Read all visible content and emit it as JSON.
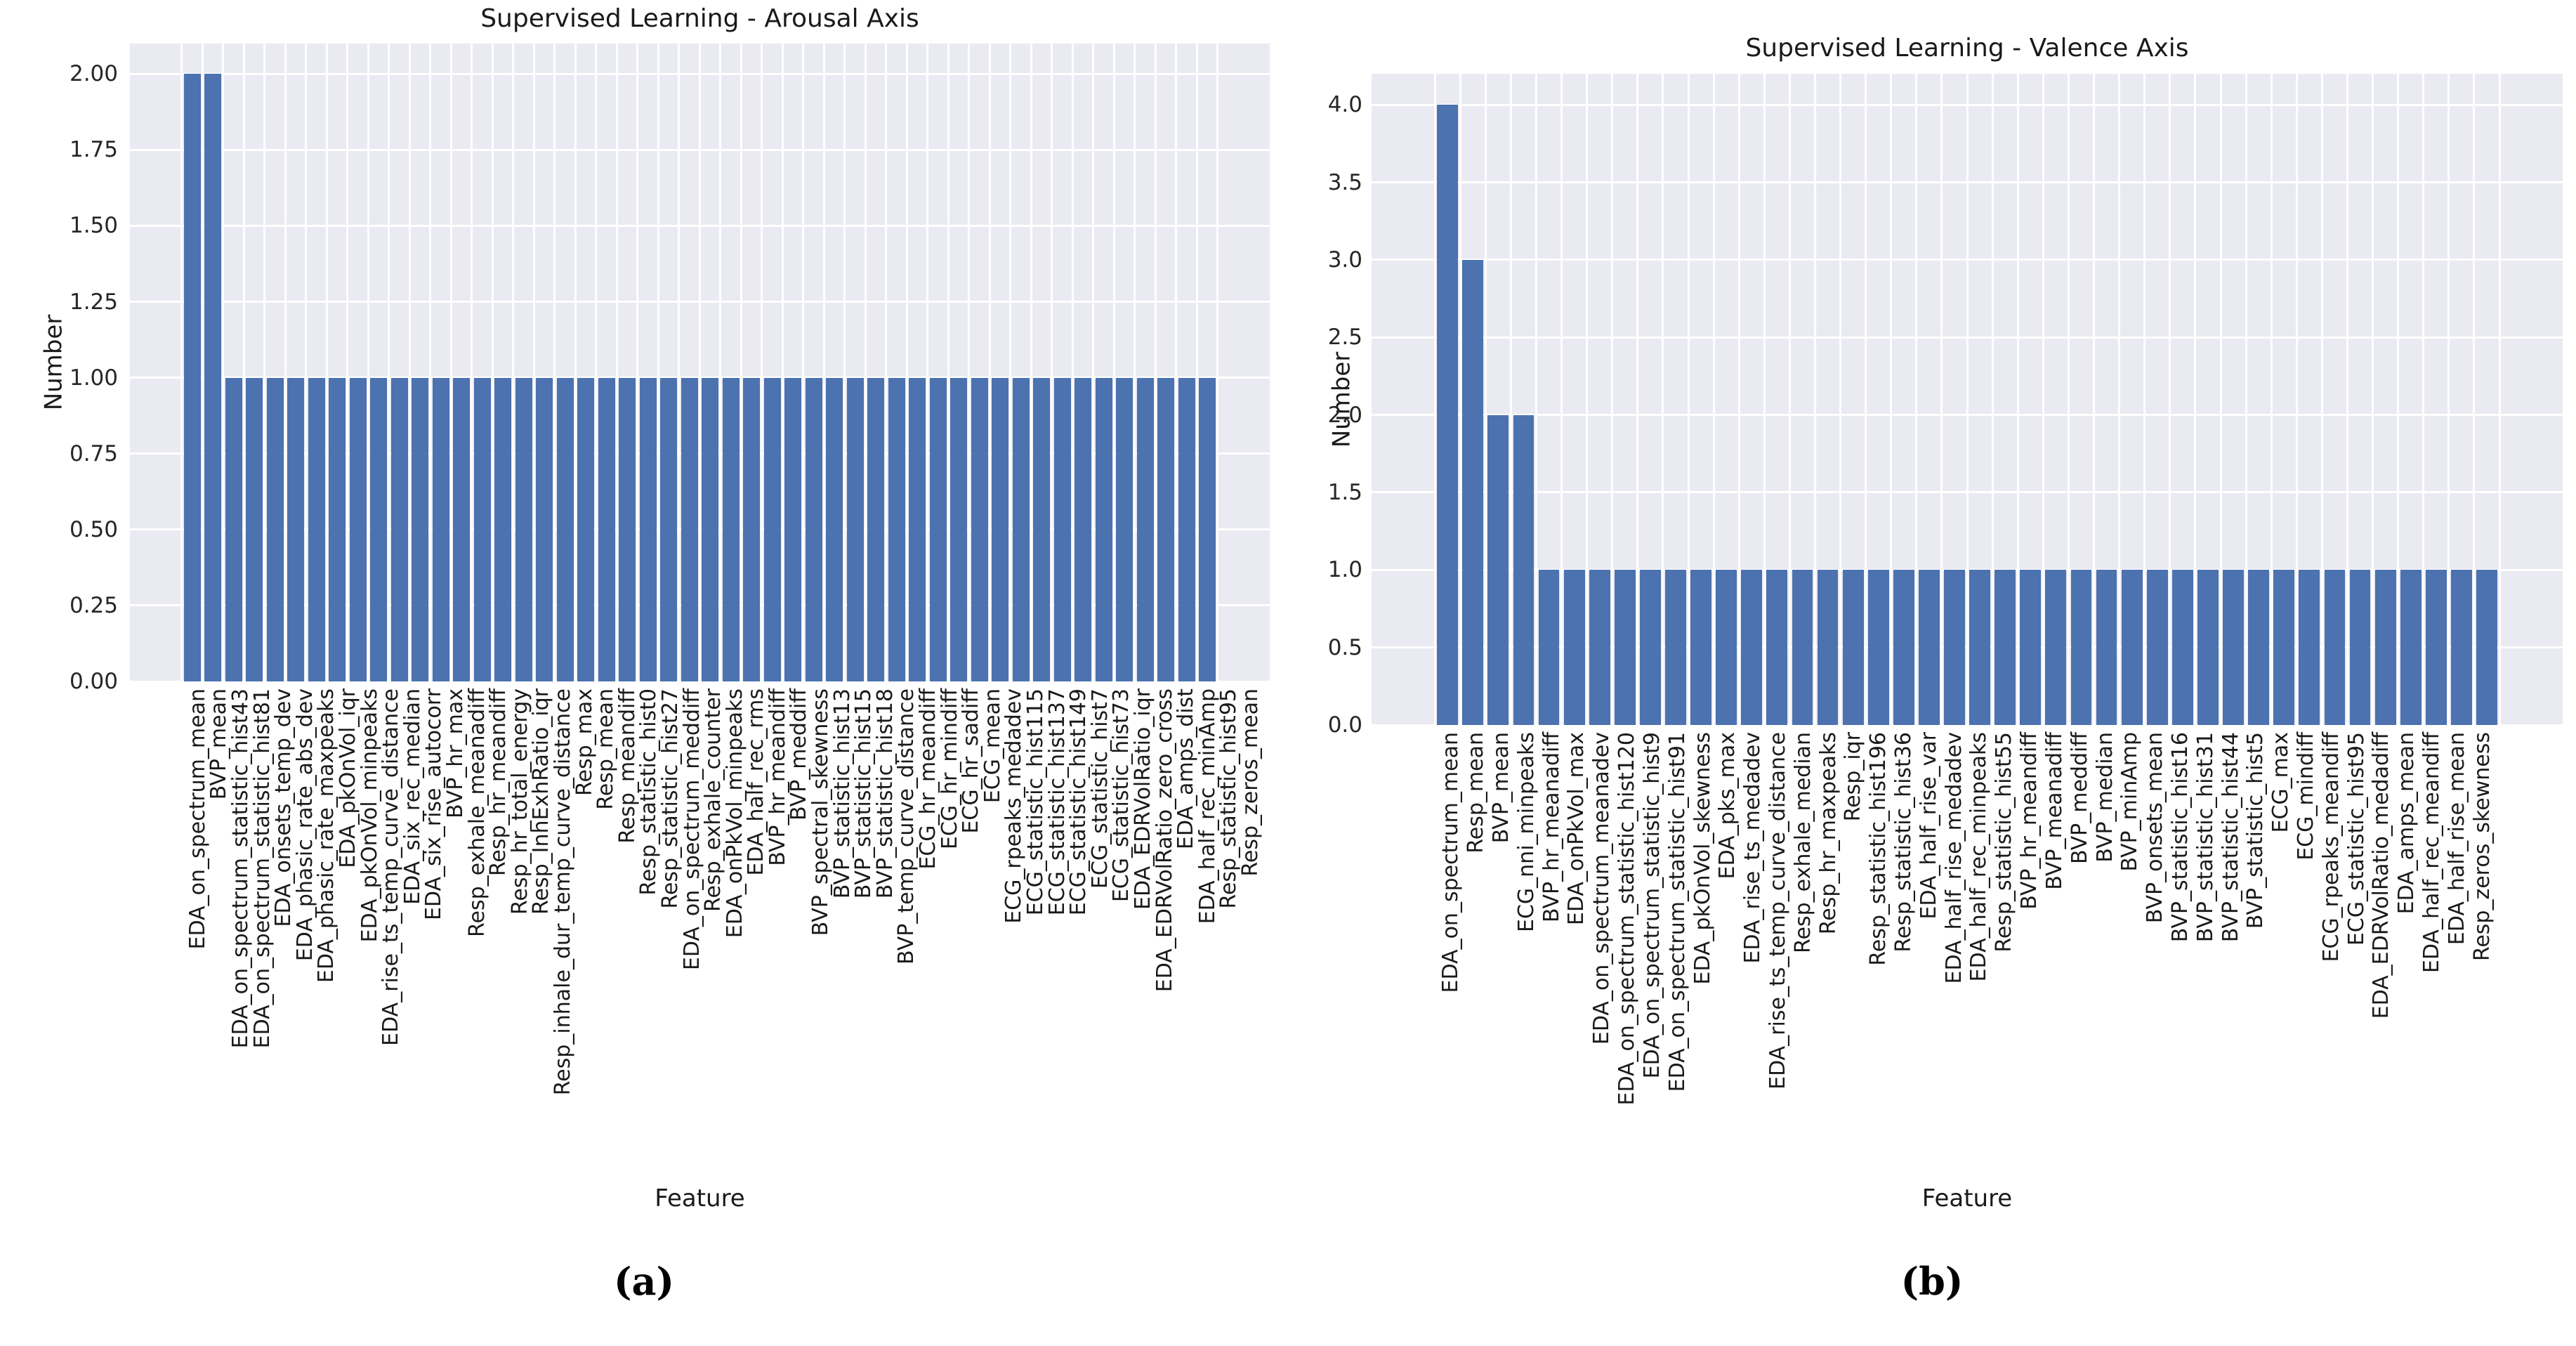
{
  "figure_captions": {
    "a": "(a)",
    "b": "(b)"
  },
  "chart_data": [
    {
      "type": "bar",
      "title": "Supervised Learning - Arousal Axis",
      "xlabel": "Feature",
      "ylabel": "Number",
      "caption": "(a)",
      "ylim": [
        0,
        2.1
      ],
      "grid": true,
      "legend_position": "none",
      "bar_color": "#4C72B0",
      "plot_bg": "#EAEAF2",
      "grid_color": "#FFFFFF",
      "yticks": [
        0.0,
        0.25,
        0.5,
        0.75,
        1.0,
        1.25,
        1.5,
        1.75,
        2.0
      ],
      "ytick_labels": [
        "0.00",
        "0.25",
        "0.50",
        "0.75",
        "1.00",
        "1.25",
        "1.50",
        "1.75",
        "2.00"
      ],
      "categories": [
        "EDA_on_spectrum_mean",
        "BVP_mean",
        "EDA_on_spectrum_statistic_hist43",
        "EDA_on_spectrum_statistic_hist81",
        "EDA_onsets_temp_dev",
        "EDA_phasic_rate_abs_dev",
        "EDA_phasic_rate_maxpeaks",
        "EDA_pkOnVol_iqr",
        "EDA_pkOnVol_minpeaks",
        "EDA_rise_ts_temp_curve_distance",
        "EDA_six_rec_median",
        "EDA_six_rise_autocorr",
        "BVP_hr_max",
        "Resp_exhale_meanadiff",
        "Resp_hr_meandiff",
        "Resp_hr_total_energy",
        "Resp_InhExhRatio_iqr",
        "Resp_inhale_dur_temp_curve_distance",
        "Resp_max",
        "Resp_mean",
        "Resp_meandiff",
        "Resp_statistic_hist0",
        "Resp_statistic_hist27",
        "EDA_on_spectrum_meddiff",
        "Resp_exhale_counter",
        "EDA_onPkVol_minpeaks",
        "EDA_half_rec_rms",
        "BVP_hr_meandiff",
        "BVP_meddiff",
        "BVP_spectral_skewness",
        "BVP_statistic_hist13",
        "BVP_statistic_hist15",
        "BVP_statistic_hist18",
        "BVP_temp_curve_distance",
        "ECG_hr_meandiff",
        "ECG_hr_mindiff",
        "ECG_hr_sadiff",
        "ECG_mean",
        "ECG_rpeaks_medadev",
        "ECG_statistic_hist115",
        "ECG_statistic_hist137",
        "ECG_statistic_hist149",
        "ECG_statistic_hist7",
        "ECG_statistic_hist73",
        "EDA_EDRVolRatio_iqr",
        "EDA_EDRVolRatio_zero_cross",
        "EDA_amps_dist",
        "EDA_half_rec_minAmp",
        "Resp_statistic_hist95",
        "Resp_zeros_mean"
      ],
      "values": [
        2,
        2,
        1,
        1,
        1,
        1,
        1,
        1,
        1,
        1,
        1,
        1,
        1,
        1,
        1,
        1,
        1,
        1,
        1,
        1,
        1,
        1,
        1,
        1,
        1,
        1,
        1,
        1,
        1,
        1,
        1,
        1,
        1,
        1,
        1,
        1,
        1,
        1,
        1,
        1,
        1,
        1,
        1,
        1,
        1,
        1,
        1,
        1,
        1,
        1
      ]
    },
    {
      "type": "bar",
      "title": "Supervised Learning - Valence Axis",
      "xlabel": "Feature",
      "ylabel": "Number",
      "caption": "(b)",
      "ylim": [
        0,
        4.2
      ],
      "grid": true,
      "legend_position": "none",
      "bar_color": "#4C72B0",
      "plot_bg": "#EAEAF2",
      "grid_color": "#FFFFFF",
      "yticks": [
        0.0,
        0.5,
        1.0,
        1.5,
        2.0,
        2.5,
        3.0,
        3.5,
        4.0
      ],
      "ytick_labels": [
        "0.0",
        "0.5",
        "1.0",
        "1.5",
        "2.0",
        "2.5",
        "3.0",
        "3.5",
        "4.0"
      ],
      "categories": [
        "EDA_on_spectrum_mean",
        "Resp_mean",
        "BVP_mean",
        "ECG_nni_minpeaks",
        "BVP_hr_meanadiff",
        "EDA_onPkVol_max",
        "EDA_on_spectrum_meanadev",
        "EDA_on_spectrum_statistic_hist120",
        "EDA_on_spectrum_statistic_hist9",
        "EDA_on_spectrum_statistic_hist91",
        "EDA_pkOnVol_skewness",
        "EDA_pks_max",
        "EDA_rise_ts_medadev",
        "EDA_rise_ts_temp_curve_distance",
        "Resp_exhale_median",
        "Resp_hr_maxpeaks",
        "Resp_iqr",
        "Resp_statistic_hist196",
        "Resp_statistic_hist36",
        "EDA_half_rise_var",
        "EDA_half_rise_medadev",
        "EDA_half_rec_minpeaks",
        "Resp_statistic_hist55",
        "BVP_hr_meandiff",
        "BVP_meanadiff",
        "BVP_meddiff",
        "BVP_median",
        "BVP_minAmp",
        "BVP_onsets_mean",
        "BVP_statistic_hist16",
        "BVP_statistic_hist31",
        "BVP_statistic_hist44",
        "BVP_statistic_hist5",
        "ECG_max",
        "ECG_mindiff",
        "ECG_rpeaks_meandiff",
        "ECG_statistic_hist95",
        "EDA_EDRVolRatio_medadiff",
        "EDA_amps_mean",
        "EDA_half_rec_meandiff",
        "EDA_half_rise_mean",
        "Resp_zeros_skewness"
      ],
      "values": [
        4,
        3,
        2,
        2,
        1,
        1,
        1,
        1,
        1,
        1,
        1,
        1,
        1,
        1,
        1,
        1,
        1,
        1,
        1,
        1,
        1,
        1,
        1,
        1,
        1,
        1,
        1,
        1,
        1,
        1,
        1,
        1,
        1,
        1,
        1,
        1,
        1,
        1,
        1,
        1,
        1,
        1
      ]
    }
  ]
}
